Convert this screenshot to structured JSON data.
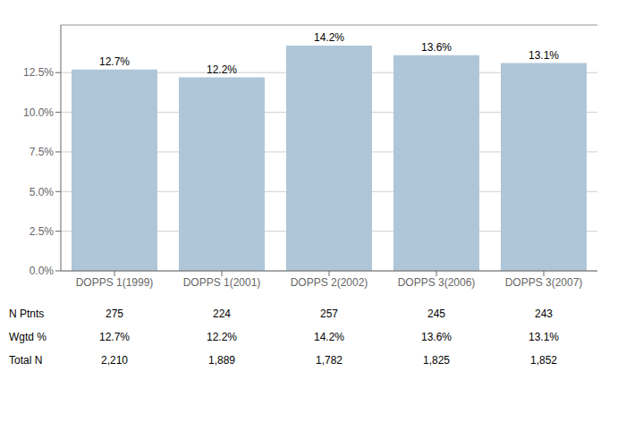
{
  "chart_data": {
    "type": "bar",
    "categories": [
      "DOPPS 1(1999)",
      "DOPPS 1(2001)",
      "DOPPS 2(2002)",
      "DOPPS 3(2006)",
      "DOPPS 3(2007)"
    ],
    "values": [
      12.7,
      12.2,
      14.2,
      13.6,
      13.1
    ],
    "value_labels": [
      "12.7%",
      "12.2%",
      "14.2%",
      "13.6%",
      "13.1%"
    ],
    "data_labels": true,
    "color": "#aec6d8",
    "ylim": [
      0,
      15.5
    ],
    "yticks": [
      {
        "value": 0.0,
        "label": "0.0%"
      },
      {
        "value": 2.5,
        "label": "2.5%"
      },
      {
        "value": 5.0,
        "label": "5.0%"
      },
      {
        "value": 7.5,
        "label": "7.5%"
      },
      {
        "value": 10.0,
        "label": "10.0%"
      },
      {
        "value": 12.5,
        "label": "12.5%"
      }
    ],
    "grid": true,
    "table": {
      "row_labels": [
        "N Ptnts",
        "Wgtd %",
        "Total N"
      ],
      "rows": [
        [
          "275",
          "224",
          "257",
          "245",
          "243"
        ],
        [
          "12.7%",
          "12.2%",
          "14.2%",
          "13.6%",
          "13.1%"
        ],
        [
          "2,210",
          "1,889",
          "1,782",
          "1,825",
          "1,852"
        ]
      ]
    }
  }
}
